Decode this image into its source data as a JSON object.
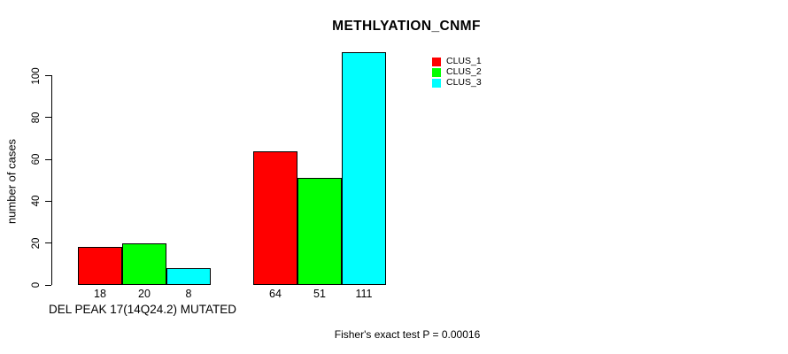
{
  "title": "METHLYATION_CNMF",
  "footer": "Fisher's exact test P = 0.00016",
  "colors": {
    "background": "#ffffff",
    "axis": "#000000",
    "text": "#000000",
    "clus_1": "#ff0000",
    "clus_2": "#00ff00",
    "clus_3": "#00ffff"
  },
  "chart_data": {
    "type": "bar",
    "title": "METHLYATION_CNMF",
    "ylabel": "number of cases",
    "xlabel": "DEL PEAK 17(14Q24.2) MUTATED",
    "annotation": "Fisher's exact test P = 0.00016",
    "yticks": [
      0,
      20,
      40,
      60,
      80,
      100
    ],
    "axis_max": 100,
    "ylim": [
      0,
      111
    ],
    "grid": false,
    "legend_position": "top-right-inset",
    "bar_value_labels": true,
    "series": [
      {
        "name": "CLUS_1",
        "color": "#ff0000"
      },
      {
        "name": "CLUS_2",
        "color": "#00ff00"
      },
      {
        "name": "CLUS_3",
        "color": "#00ffff"
      }
    ],
    "groups": [
      {
        "label": "DEL PEAK 17(14Q24.2) MUTATED",
        "values": [
          18,
          20,
          8
        ]
      },
      {
        "label": "",
        "values": [
          64,
          51,
          111
        ]
      }
    ]
  }
}
